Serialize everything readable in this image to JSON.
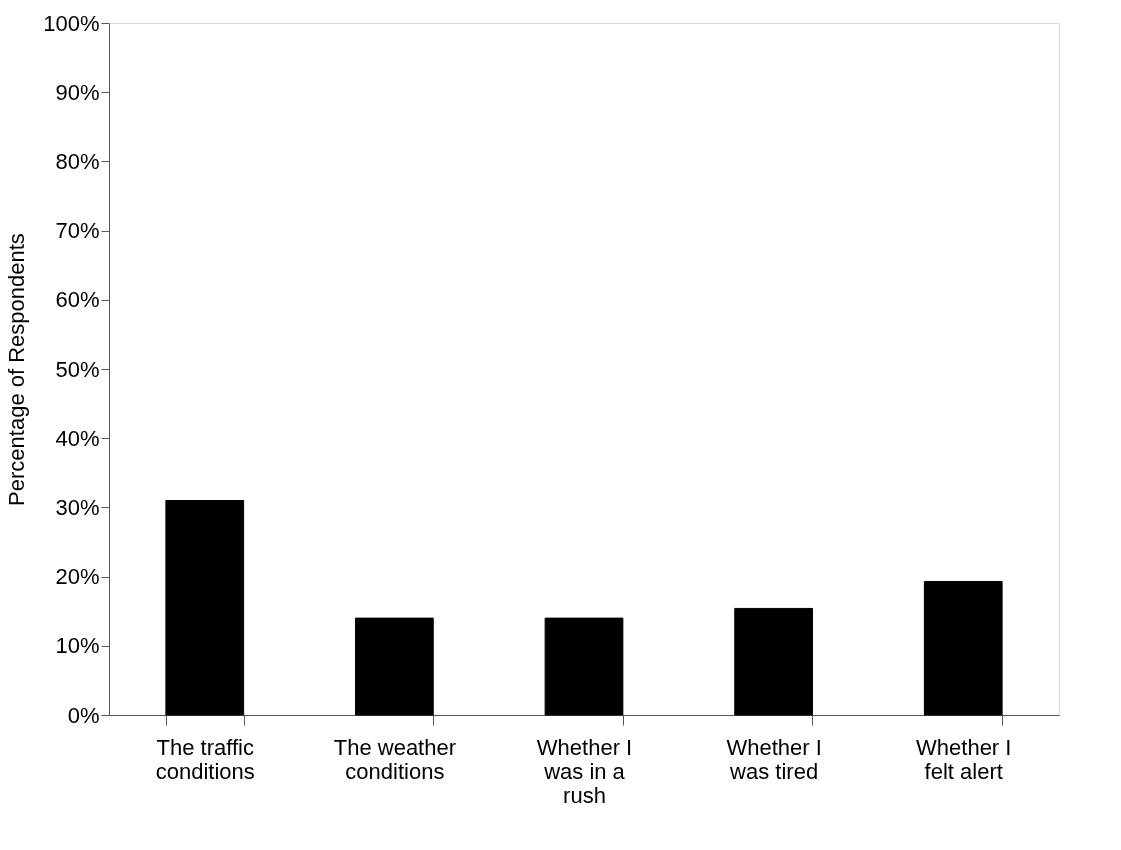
{
  "chart_data": {
    "type": "bar",
    "ylabel": "Percentage of Respondents",
    "categories": [
      "The traffic conditions",
      "The weather conditions",
      "Whether I was in a rush",
      "Whether I was tired",
      "Whether I felt alert"
    ],
    "values": [
      31,
      14,
      14,
      15.4,
      19.3
    ],
    "color": "#000000",
    "ylim": [
      0,
      100
    ],
    "yticks": [
      {
        "value": 0,
        "label": "0%"
      },
      {
        "value": 10,
        "label": "10%"
      },
      {
        "value": 20,
        "label": "20%"
      },
      {
        "value": 30,
        "label": "30%"
      },
      {
        "value": 40,
        "label": "40%"
      },
      {
        "value": 50,
        "label": "50%"
      },
      {
        "value": 60,
        "label": "60%"
      },
      {
        "value": 70,
        "label": "70%"
      },
      {
        "value": 80,
        "label": "80%"
      },
      {
        "value": 90,
        "label": "90%"
      },
      {
        "value": 100,
        "label": "100%"
      }
    ],
    "grid": false
  }
}
